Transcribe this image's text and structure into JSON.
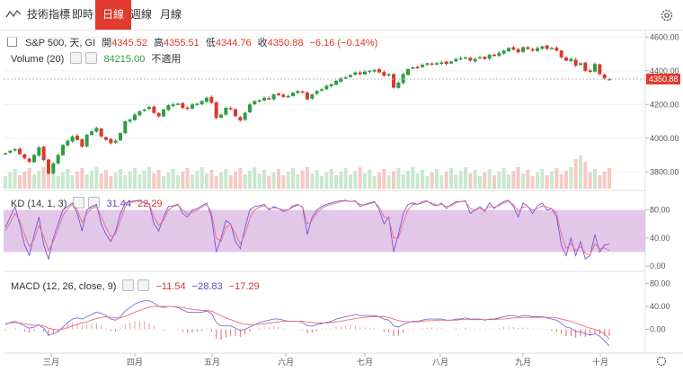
{
  "toolbar": {
    "indicators_label": "技術指標",
    "tabs": [
      "即時",
      "日線",
      "週線",
      "月線"
    ],
    "active_tab": "日線"
  },
  "price_legend": {
    "symbol": "S&P 500, 天, GI",
    "open_label": "開",
    "open": "4345.52",
    "high_label": "高",
    "high": "4355.51",
    "low_label": "低",
    "low": "4344.76",
    "close_label": "收",
    "close": "4350.88",
    "change": "−6.16 (−0.14%)"
  },
  "volume_legend": {
    "name": "Volume (20)",
    "value": "84215.00",
    "na": "不適用"
  },
  "kd_legend": {
    "name": "KD (14, 1, 3)",
    "k": "31.44",
    "d": "22.29"
  },
  "macd_legend": {
    "name": "MACD (12, 26, close, 9)",
    "hist": "−11.54",
    "macd": "−28.83",
    "signal": "−17.29"
  },
  "last_price_tag": "4350.88",
  "colors": {
    "up": "#2e9e44",
    "down": "#d93a2b",
    "accent": "#e23b2e",
    "kd_band": "#dcb9e3",
    "k_line": "#7b52d6",
    "d_line": "#e0708c",
    "macd_line": "#7b6fd6",
    "signal_line": "#e96b7a"
  },
  "chart_data": [
    {
      "type": "candlestick",
      "title": "S&P 500",
      "x_tick_labels": [
        "三月",
        "四月",
        "五月",
        "六月",
        "七月",
        "八月",
        "九月",
        "十月"
      ],
      "y_tick_labels": [
        "3800.00",
        "4000.00",
        "4200.00",
        "4400.00",
        "4600.00"
      ],
      "ylim": [
        3700,
        4660
      ],
      "close_series": [
        3910,
        3925,
        3935,
        3905,
        3880,
        3860,
        3900,
        3945,
        3870,
        3790,
        3850,
        3900,
        3960,
        3985,
        4010,
        3990,
        3950,
        4020,
        4040,
        4060,
        4010,
        3990,
        3970,
        3985,
        4030,
        4100,
        4110,
        4140,
        4160,
        4170,
        4185,
        4150,
        4130,
        4170,
        4195,
        4200,
        4205,
        4180,
        4175,
        4200,
        4205,
        4220,
        4240,
        4210,
        4120,
        4140,
        4180,
        4175,
        4130,
        4105,
        4150,
        4200,
        4220,
        4225,
        4240,
        4235,
        4260,
        4255,
        4245,
        4250,
        4270,
        4280,
        4275,
        4230,
        4260,
        4280,
        4290,
        4310,
        4320,
        4340,
        4355,
        4360,
        4375,
        4390,
        4380,
        4395,
        4400,
        4405,
        4390,
        4370,
        4380,
        4300,
        4330,
        4380,
        4410,
        4420,
        4420,
        4435,
        4445,
        4440,
        4445,
        4450,
        4440,
        4455,
        4470,
        4475,
        4480,
        4460,
        4470,
        4480,
        4470,
        4495,
        4490,
        4505,
        4520,
        4535,
        4525,
        4510,
        4540,
        4530,
        4520,
        4535,
        4545,
        4530,
        4535,
        4520,
        4480,
        4460,
        4470,
        4430,
        4445,
        4400,
        4395,
        4440,
        4380,
        4355,
        4350.88
      ],
      "series": [
        {
          "name": "Volume (20)",
          "type": "bar"
        }
      ]
    },
    {
      "type": "line",
      "title": "KD (14, 1, 3)",
      "y_tick_labels": [
        "0.00",
        "40.00",
        "80.00"
      ],
      "ylim": [
        -5,
        95
      ],
      "band": [
        20,
        80
      ],
      "series": [
        {
          "name": "K",
          "values": [
            55,
            70,
            85,
            60,
            30,
            15,
            45,
            70,
            30,
            10,
            40,
            60,
            80,
            85,
            90,
            75,
            50,
            80,
            85,
            88,
            60,
            45,
            35,
            50,
            75,
            90,
            92,
            93,
            94,
            90,
            88,
            60,
            50,
            70,
            85,
            86,
            88,
            75,
            70,
            80,
            82,
            86,
            90,
            70,
            20,
            40,
            65,
            60,
            35,
            25,
            55,
            80,
            85,
            86,
            88,
            80,
            85,
            82,
            78,
            80,
            86,
            88,
            84,
            45,
            70,
            80,
            85,
            88,
            90,
            92,
            93,
            94,
            92,
            93,
            85,
            88,
            90,
            92,
            80,
            60,
            70,
            20,
            45,
            75,
            88,
            90,
            88,
            92,
            93,
            88,
            86,
            90,
            82,
            88,
            92,
            92,
            93,
            75,
            80,
            85,
            78,
            90,
            82,
            88,
            92,
            94,
            85,
            70,
            90,
            85,
            75,
            86,
            90,
            80,
            82,
            70,
            30,
            15,
            40,
            15,
            35,
            10,
            15,
            45,
            20,
            30,
            31.44
          ]
        },
        {
          "name": "D",
          "values": [
            50,
            62,
            75,
            65,
            45,
            28,
            38,
            58,
            42,
            22,
            35,
            52,
            72,
            82,
            88,
            80,
            62,
            75,
            82,
            86,
            70,
            55,
            42,
            45,
            65,
            85,
            90,
            92,
            93,
            91,
            89,
            70,
            58,
            65,
            80,
            85,
            87,
            80,
            74,
            77,
            80,
            84,
            88,
            76,
            40,
            35,
            55,
            60,
            45,
            32,
            45,
            68,
            80,
            84,
            86,
            82,
            83,
            82,
            80,
            80,
            84,
            87,
            85,
            60,
            65,
            76,
            82,
            86,
            88,
            90,
            92,
            93,
            92,
            92,
            88,
            87,
            89,
            91,
            84,
            70,
            68,
            40,
            40,
            62,
            80,
            88,
            88,
            90,
            92,
            90,
            87,
            88,
            85,
            86,
            90,
            92,
            92,
            82,
            80,
            82,
            80,
            85,
            84,
            86,
            90,
            92,
            88,
            78,
            84,
            85,
            80,
            82,
            86,
            84,
            82,
            75,
            45,
            25,
            32,
            22,
            28,
            18,
            16,
            32,
            25,
            26,
            22.29
          ]
        }
      ]
    },
    {
      "type": "line",
      "title": "MACD (12, 26, close, 9)",
      "y_tick_labels": [
        "0.00",
        "40.00",
        "80.00"
      ],
      "ylim": [
        -40,
        95
      ],
      "series": [
        {
          "name": "MACD",
          "values": [
            8,
            12,
            14,
            10,
            6,
            2,
            4,
            8,
            2,
            -10,
            -8,
            -4,
            4,
            12,
            18,
            20,
            18,
            22,
            26,
            30,
            28,
            24,
            18,
            16,
            22,
            32,
            38,
            44,
            48,
            50,
            50,
            46,
            40,
            38,
            40,
            40,
            38,
            34,
            30,
            30,
            30,
            30,
            32,
            28,
            12,
            6,
            6,
            6,
            2,
            -2,
            0,
            4,
            8,
            12,
            14,
            16,
            18,
            18,
            16,
            14,
            14,
            14,
            12,
            6,
            6,
            8,
            10,
            12,
            14,
            18,
            20,
            22,
            24,
            26,
            24,
            24,
            24,
            24,
            22,
            18,
            16,
            6,
            4,
            8,
            12,
            14,
            14,
            16,
            18,
            18,
            18,
            18,
            16,
            16,
            18,
            18,
            20,
            18,
            18,
            18,
            16,
            18,
            18,
            20,
            22,
            24,
            24,
            22,
            24,
            24,
            22,
            22,
            22,
            20,
            18,
            16,
            10,
            4,
            2,
            -4,
            -4,
            -8,
            -10,
            -8,
            -12,
            -20,
            -28.83
          ]
        },
        {
          "name": "Signal",
          "values": [
            10,
            11,
            12,
            11,
            10,
            8,
            7,
            7,
            6,
            2,
            0,
            -1,
            0,
            3,
            6,
            9,
            11,
            13,
            16,
            19,
            21,
            22,
            21,
            20,
            20,
            23,
            26,
            30,
            33,
            36,
            39,
            40,
            40,
            40,
            40,
            40,
            39,
            38,
            36,
            35,
            34,
            33,
            33,
            32,
            28,
            24,
            20,
            17,
            14,
            11,
            9,
            8,
            8,
            9,
            10,
            11,
            12,
            13,
            14,
            14,
            14,
            14,
            14,
            13,
            12,
            11,
            11,
            11,
            12,
            13,
            14,
            16,
            17,
            19,
            20,
            21,
            22,
            22,
            22,
            22,
            21,
            18,
            15,
            14,
            13,
            13,
            13,
            14,
            15,
            15,
            16,
            16,
            16,
            16,
            16,
            17,
            17,
            17,
            17,
            17,
            17,
            17,
            17,
            18,
            18,
            19,
            20,
            20,
            21,
            21,
            21,
            21,
            21,
            21,
            21,
            20,
            18,
            16,
            14,
            11,
            8,
            5,
            2,
            0,
            -3,
            -8,
            -17.29
          ]
        }
      ]
    }
  ]
}
